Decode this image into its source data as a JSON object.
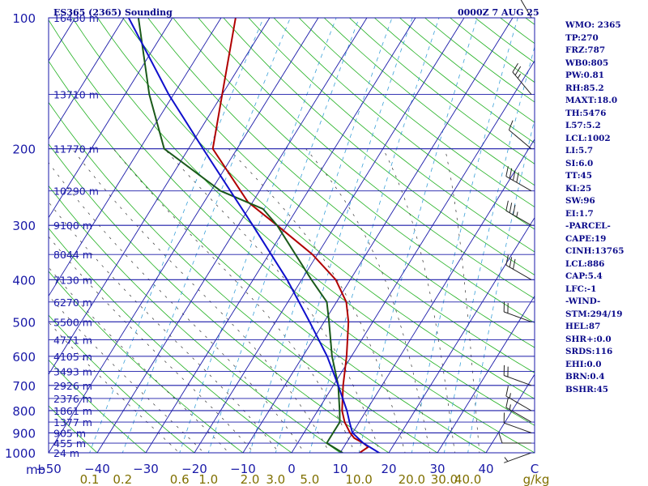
{
  "header": {
    "station_title": "ES365 (2365) Sounding",
    "time": "0000Z  7 AUG 25"
  },
  "indices": [
    "WMO: 2365",
    "TP:270",
    "FRZ:787",
    "WB0:805",
    "PW:0.81",
    "RH:85.2",
    "MAXT:18.0",
    "TH:5476",
    "L57:5.2",
    "LCL:1002",
    "LI:5.7",
    "SI:6.0",
    "TT:45",
    "KI:25",
    "SW:96",
    "EI:1.7",
    "-PARCEL-",
    "CAPE:19",
    "CINH:13765",
    "LCL:886",
    "CAP:5.4",
    "LFC:-1",
    "-WIND-",
    "STM:294/19",
    "HEL:87",
    "SHR+:0.0",
    "SRDS:116",
    "EHI:0.0",
    "BRN:0.4",
    "BSHR:45"
  ],
  "colors": {
    "isobar": "#1a1aa8",
    "isotherm": "#1a1aa8",
    "dry_adiabat": "#20b020",
    "moist_adiabat": "#333333",
    "mixing_ratio": "#3aa0d8",
    "temperature": "#b00000",
    "dewpoint": "#1a5a1a",
    "parcel": "#1010cc",
    "label": "#1a1aa8",
    "mixing_label": "#807000",
    "wind_barb": "#222222"
  },
  "chart_data": {
    "type": "skew-t",
    "pressure_unit_label": "mb",
    "xlabel_units": "C",
    "mixing_ratio_unit": "g/kg",
    "pressure_range_mb": [
      1000,
      100
    ],
    "temperature_axis_c": [
      -50,
      0
    ],
    "pressure_ticks": [
      100,
      200,
      300,
      400,
      500,
      600,
      700,
      800,
      900,
      1000
    ],
    "temperature_ticks": [
      -50,
      -40,
      -30,
      -20,
      -10,
      0,
      10,
      20,
      30,
      40
    ],
    "temperature_tick_labels": [
      "−50",
      "−40",
      "−30",
      "−20",
      "−10",
      "0",
      "10",
      "20",
      "30",
      "40",
      "C"
    ],
    "mixing_ratio_labels": [
      {
        "value": 0.1,
        "text": "0.1"
      },
      {
        "value": 0.2,
        "text": "0.2"
      },
      {
        "value": 0.6,
        "text": "0.6"
      },
      {
        "value": 1.0,
        "text": "1.0"
      },
      {
        "value": 2.0,
        "text": "2.0"
      },
      {
        "value": 3.0,
        "text": "3.0"
      },
      {
        "value": 5.0,
        "text": "5.0"
      },
      {
        "value": 10.0,
        "text": "10.0"
      },
      {
        "value": 20.0,
        "text": "20.0"
      },
      {
        "value": 30.0,
        "text": "30.0"
      },
      {
        "value": 40.0,
        "text": "40.0"
      }
    ],
    "height_labels": [
      {
        "pressure": 1000,
        "text": "24 m"
      },
      {
        "pressure": 950,
        "text": "455 m"
      },
      {
        "pressure": 900,
        "text": "905 m"
      },
      {
        "pressure": 850,
        "text": "1377 m"
      },
      {
        "pressure": 800,
        "text": "1861 m"
      },
      {
        "pressure": 750,
        "text": "2376 m"
      },
      {
        "pressure": 700,
        "text": "2926 m"
      },
      {
        "pressure": 650,
        "text": "3493 m"
      },
      {
        "pressure": 600,
        "text": "4105 m"
      },
      {
        "pressure": 550,
        "text": "4771 m"
      },
      {
        "pressure": 500,
        "text": "5500 m"
      },
      {
        "pressure": 450,
        "text": "6270 m"
      },
      {
        "pressure": 400,
        "text": "7130 m"
      },
      {
        "pressure": 350,
        "text": "8044 m"
      },
      {
        "pressure": 300,
        "text": "9100 m"
      },
      {
        "pressure": 250,
        "text": "10290 m"
      },
      {
        "pressure": 200,
        "text": "11770 m"
      },
      {
        "pressure": 150,
        "text": "13710 m"
      },
      {
        "pressure": 100,
        "text": "16430 m"
      }
    ],
    "series": [
      {
        "name": "",
        "role": "temperature",
        "points": [
          [
            1000,
            14
          ],
          [
            970,
            15
          ],
          [
            950,
            13.5
          ],
          [
            925,
            11
          ],
          [
            900,
            9.5
          ],
          [
            850,
            7
          ],
          [
            800,
            5
          ],
          [
            700,
            2
          ],
          [
            600,
            -1
          ],
          [
            500,
            -5
          ],
          [
            450,
            -8
          ],
          [
            400,
            -13
          ],
          [
            350,
            -21
          ],
          [
            300,
            -32
          ],
          [
            265,
            -41
          ],
          [
            200,
            -55
          ],
          [
            150,
            -60
          ],
          [
            100,
            -67
          ]
        ]
      },
      {
        "name": "",
        "role": "dewpoint",
        "points": [
          [
            1000,
            10.5
          ],
          [
            950,
            6
          ],
          [
            900,
            6
          ],
          [
            850,
            6
          ],
          [
            800,
            4.5
          ],
          [
            700,
            1
          ],
          [
            600,
            -4
          ],
          [
            500,
            -9
          ],
          [
            450,
            -12
          ],
          [
            400,
            -18
          ],
          [
            300,
            -32
          ],
          [
            275,
            -37
          ],
          [
            250,
            -48
          ],
          [
            200,
            -65
          ],
          [
            150,
            -75
          ],
          [
            100,
            -87
          ]
        ]
      },
      {
        "name": "",
        "role": "parcel",
        "points": [
          [
            1000,
            18
          ],
          [
            950,
            13.5
          ],
          [
            900,
            10
          ],
          [
            850,
            8
          ],
          [
            800,
            6
          ],
          [
            700,
            1
          ],
          [
            600,
            -5
          ],
          [
            500,
            -13
          ],
          [
            400,
            -23
          ],
          [
            300,
            -37
          ],
          [
            250,
            -46
          ],
          [
            200,
            -57
          ],
          [
            150,
            -71
          ],
          [
            100,
            -89
          ]
        ]
      }
    ],
    "wind_barbs": [
      {
        "pressure": 1000,
        "direction_deg": 250,
        "speed_kt": 5
      },
      {
        "pressure": 950,
        "direction_deg": 270,
        "speed_kt": 10
      },
      {
        "pressure": 900,
        "direction_deg": 290,
        "speed_kt": 10
      },
      {
        "pressure": 850,
        "direction_deg": 300,
        "speed_kt": 15
      },
      {
        "pressure": 800,
        "direction_deg": 300,
        "speed_kt": 15
      },
      {
        "pressure": 700,
        "direction_deg": 290,
        "speed_kt": 20
      },
      {
        "pressure": 500,
        "direction_deg": 290,
        "speed_kt": 20
      },
      {
        "pressure": 400,
        "direction_deg": 300,
        "speed_kt": 30
      },
      {
        "pressure": 300,
        "direction_deg": 300,
        "speed_kt": 35
      },
      {
        "pressure": 250,
        "direction_deg": 300,
        "speed_kt": 40
      },
      {
        "pressure": 200,
        "direction_deg": 310,
        "speed_kt": 10
      },
      {
        "pressure": 150,
        "direction_deg": 320,
        "speed_kt": 25
      },
      {
        "pressure": 100,
        "direction_deg": 330,
        "speed_kt": 15
      }
    ]
  }
}
